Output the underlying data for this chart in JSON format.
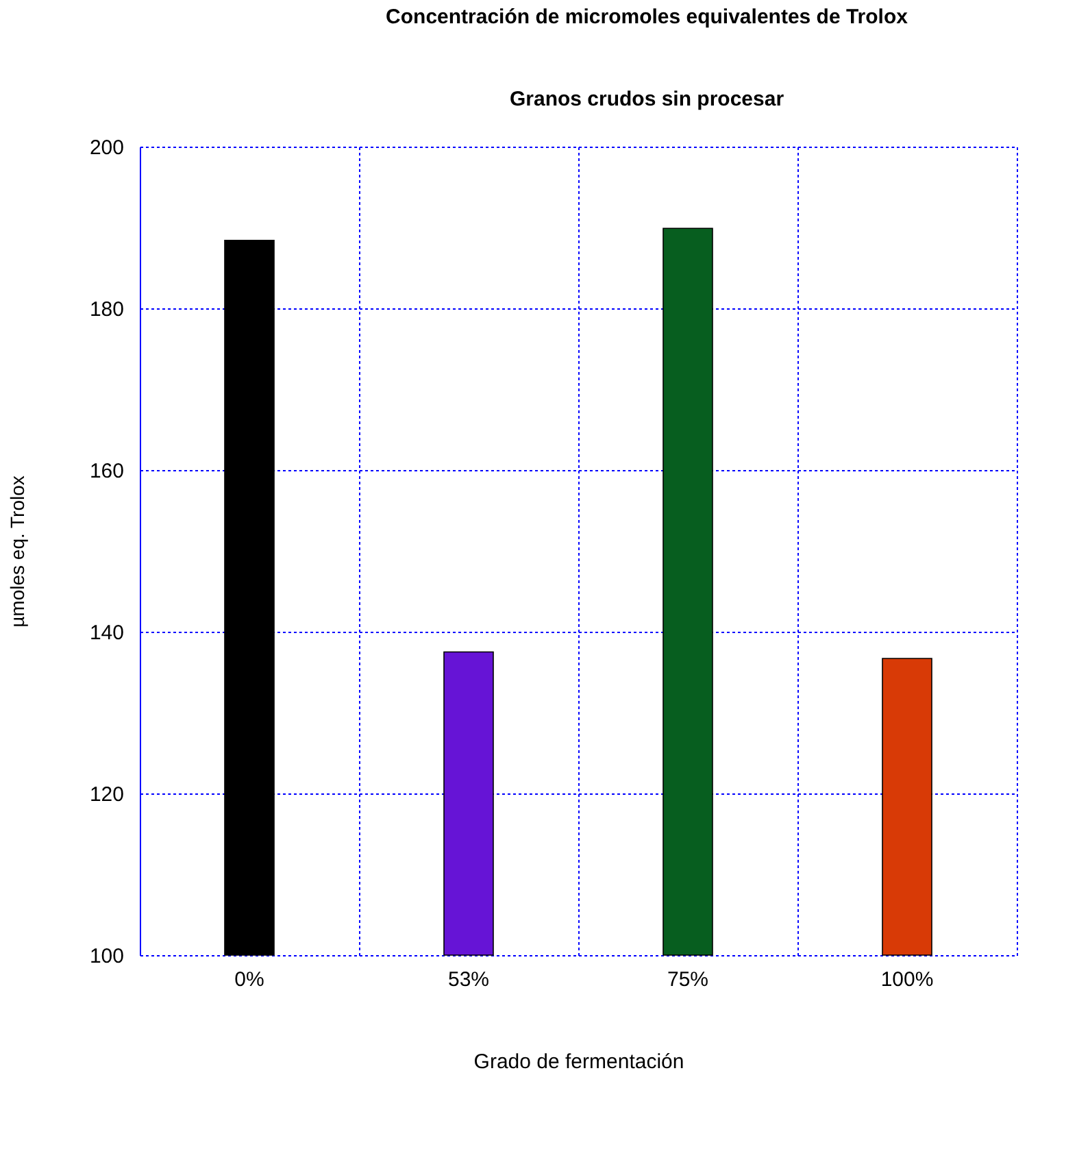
{
  "chart_data": {
    "type": "bar",
    "title": "Concentración de micromoles equivalentes de Trolox",
    "subtitle": "Granos crudos sin procesar",
    "xlabel": "Grado de fermentación",
    "ylabel": "µmoles eq. Trolox",
    "categories": [
      "0%",
      "53%",
      "75%",
      "100%"
    ],
    "values": [
      188.4,
      137.5,
      189.9,
      136.7
    ],
    "colors": [
      "#000000",
      "#6614d6",
      "#075e1f",
      "#d83a06"
    ],
    "ylim": [
      100,
      200
    ],
    "yticks": [
      100,
      120,
      140,
      160,
      180,
      200
    ],
    "grid": true
  }
}
